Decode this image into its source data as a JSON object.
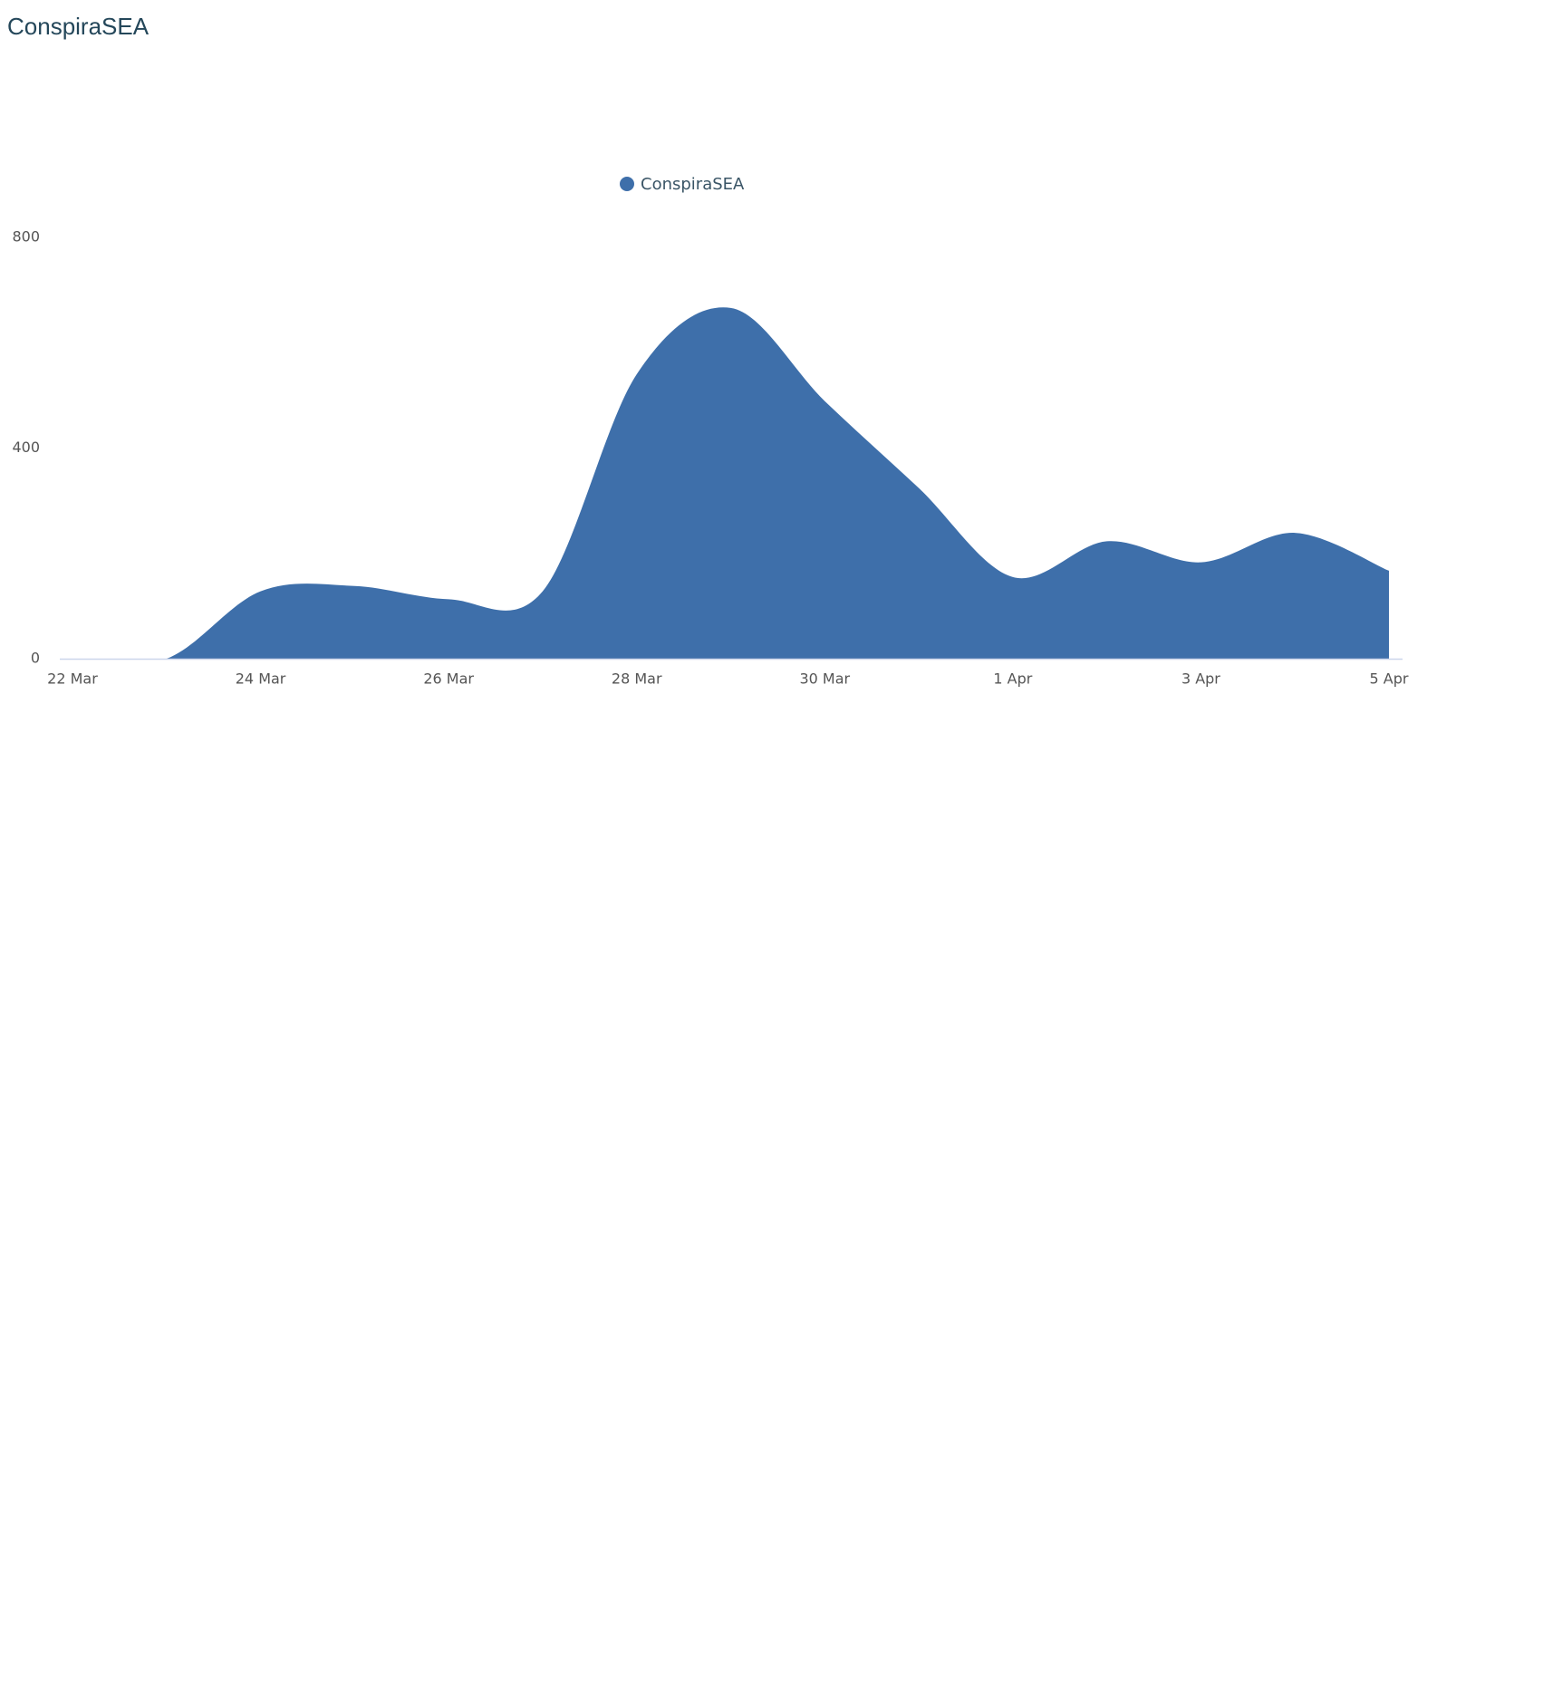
{
  "chart_data": {
    "type": "area",
    "title": "ConspiraSEA",
    "categories": [
      "22 Mar",
      null,
      "24 Mar",
      null,
      "26 Mar",
      null,
      "28 Mar",
      null,
      "30 Mar",
      null,
      "1 Apr",
      null,
      "3 Apr",
      null,
      "5 Apr"
    ],
    "series": [
      {
        "name": "ConspiraSEA",
        "color": "#3e6faa",
        "values": [
          0,
          0,
          128,
          138,
          113,
          128,
          540,
          666,
          489,
          324,
          155,
          223,
          183,
          239,
          167
        ]
      }
    ],
    "ylim": [
      0,
      800
    ],
    "yticks": [
      0,
      400,
      800
    ],
    "grid": false,
    "legend": "top"
  }
}
